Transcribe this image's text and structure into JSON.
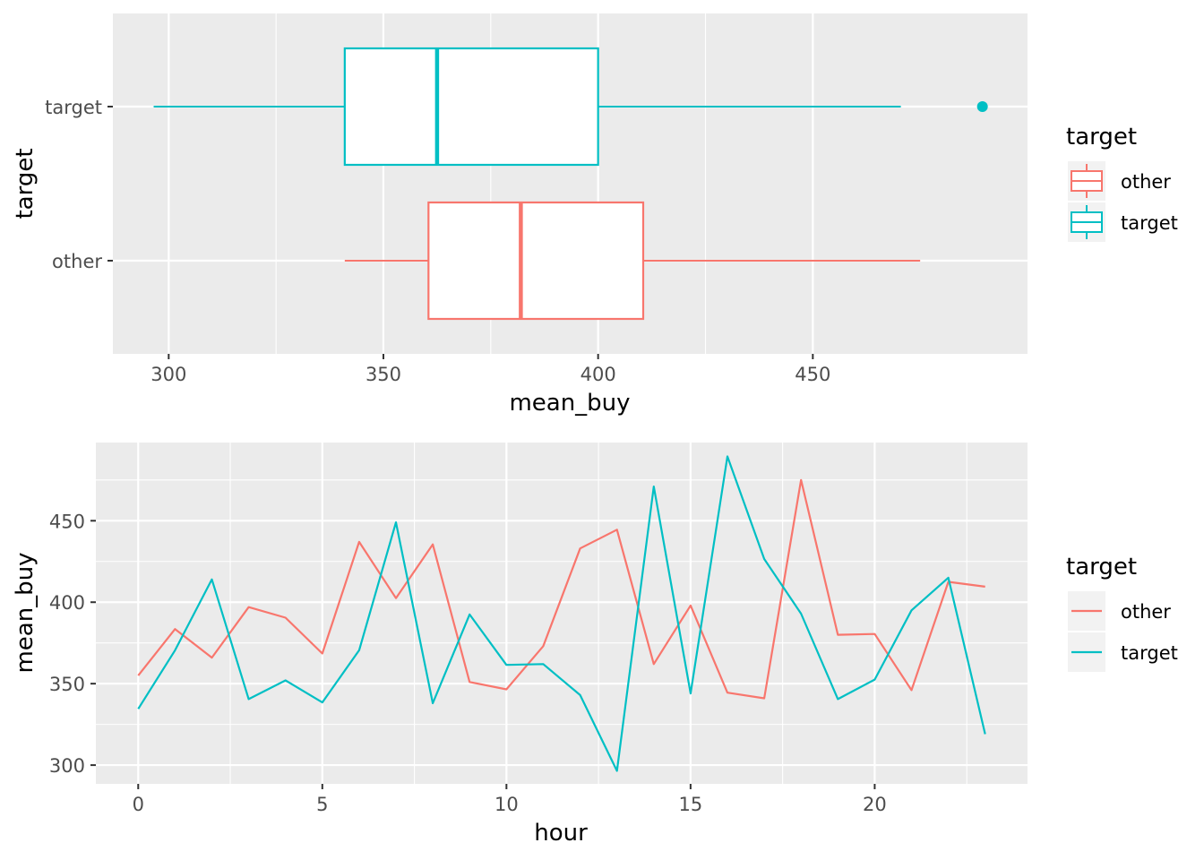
{
  "chart_data": [
    {
      "type": "boxplot",
      "orientation": "horizontal",
      "xlabel": "mean_buy",
      "ylabel": "target",
      "xlim": [
        287,
        500
      ],
      "x_ticks": [
        300,
        350,
        400,
        450
      ],
      "categories": [
        "other",
        "target"
      ],
      "legend": {
        "title": "target",
        "position": "right",
        "entries": [
          "other",
          "target"
        ]
      },
      "series": [
        {
          "name": "other",
          "color": "#F8766D",
          "whisker_low": 341,
          "q1": 360.5,
          "median": 382,
          "q3": 410.5,
          "whisker_high": 475,
          "outliers": []
        },
        {
          "name": "target",
          "color": "#00BFC4",
          "whisker_low": 296.5,
          "q1": 341,
          "median": 362.5,
          "q3": 400,
          "whisker_high": 470.5,
          "outliers": [
            489.5
          ]
        }
      ]
    },
    {
      "type": "line",
      "xlabel": "hour",
      "ylabel": "mean_buy",
      "xlim": [
        -1.15,
        24.15
      ],
      "ylim": [
        288.5,
        498
      ],
      "x_ticks": [
        0,
        5,
        10,
        15,
        20
      ],
      "y_ticks": [
        300,
        350,
        400,
        450
      ],
      "x": [
        0,
        1,
        2,
        3,
        4,
        5,
        6,
        7,
        8,
        9,
        10,
        11,
        12,
        13,
        14,
        15,
        16,
        17,
        18,
        19,
        20,
        21,
        22,
        23
      ],
      "legend": {
        "title": "target",
        "position": "right",
        "entries": [
          "other",
          "target"
        ]
      },
      "series": [
        {
          "name": "other",
          "color": "#F8766D",
          "values": [
            355,
            383.5,
            366,
            397,
            390.5,
            368.5,
            437,
            402.5,
            435.5,
            351,
            346.5,
            373,
            433,
            444.5,
            362,
            398,
            344.5,
            341,
            475,
            380,
            380.5,
            346,
            412.5,
            409.5
          ]
        },
        {
          "name": "target",
          "color": "#00BFC4",
          "values": [
            334.5,
            370.5,
            414,
            340.5,
            352,
            338.5,
            370.5,
            449,
            338,
            392.5,
            361.5,
            362,
            343,
            296.5,
            471,
            344,
            489.5,
            426.5,
            393,
            340.5,
            352.5,
            395,
            415,
            319
          ]
        }
      ]
    }
  ]
}
